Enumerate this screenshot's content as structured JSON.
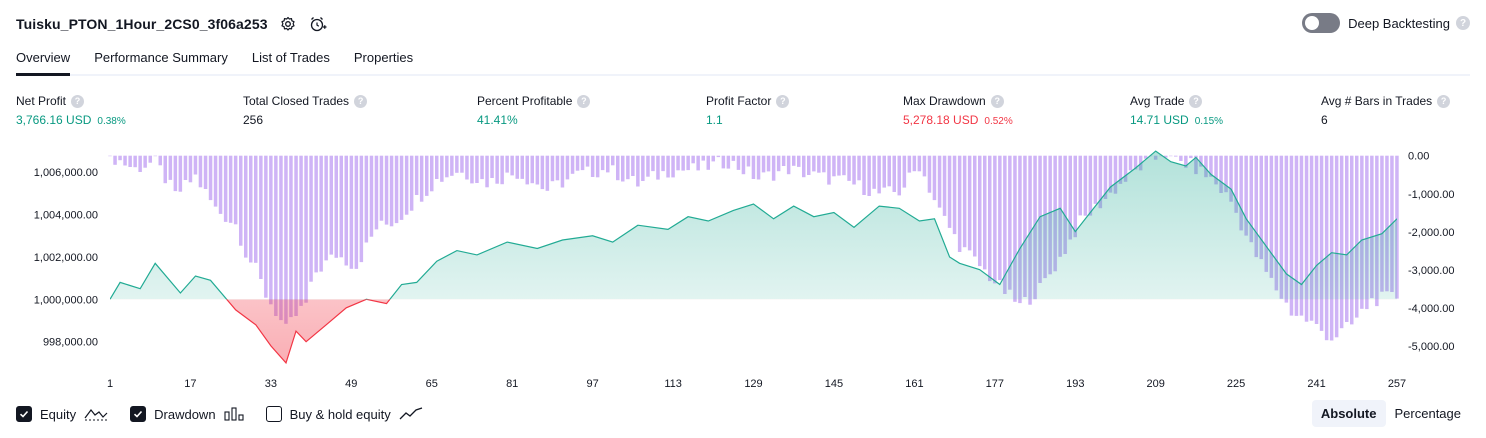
{
  "header": {
    "title": "Tuisku_PTON_1Hour_2CS0_3f06a253",
    "deep_backtesting_label": "Deep Backtesting",
    "help_glyph": "?"
  },
  "tabs": [
    {
      "label": "Overview",
      "active": true
    },
    {
      "label": "Performance Summary"
    },
    {
      "label": "List of Trades"
    },
    {
      "label": "Properties"
    }
  ],
  "stats": [
    {
      "label": "Net Profit",
      "value": "3,766.16 USD",
      "pct": "0.38%",
      "color": "#089981"
    },
    {
      "label": "Total Closed Trades",
      "value": "256",
      "pct": "",
      "color": "#131722"
    },
    {
      "label": "Percent Profitable",
      "value": "41.41%",
      "pct": "",
      "color": "#089981"
    },
    {
      "label": "Profit Factor",
      "value": "1.1",
      "pct": "",
      "color": "#089981"
    },
    {
      "label": "Max Drawdown",
      "value": "5,278.18 USD",
      "pct": "0.52%",
      "color": "#f23645"
    },
    {
      "label": "Avg Trade",
      "value": "14.71 USD",
      "pct": "0.15%",
      "color": "#089981"
    },
    {
      "label": "Avg # Bars in Trades",
      "value": "6",
      "pct": "",
      "color": "#131722"
    }
  ],
  "legend": {
    "equity_label": "Equity",
    "drawdown_label": "Drawdown",
    "buy_hold_label": "Buy & hold equity",
    "equity_checked": true,
    "drawdown_checked": true,
    "buy_hold_checked": false
  },
  "view_toggle": {
    "absolute_label": "Absolute",
    "percentage_label": "Percentage",
    "active": "Absolute"
  },
  "colors": {
    "equity_up": "#22ab94",
    "equity_down": "#f23645",
    "drawdown_bar": "#c7a7f5"
  },
  "chart_data": {
    "type": "area",
    "x_tick_labels": [
      "1",
      "17",
      "33",
      "49",
      "65",
      "81",
      "97",
      "113",
      "129",
      "145",
      "161",
      "177",
      "193",
      "209",
      "225",
      "241",
      "257"
    ],
    "left_axis": {
      "tick_labels": [
        "1,006,000.00",
        "1,004,000.00",
        "1,002,000.00",
        "1,000,000.00",
        "998,000.00"
      ],
      "ticks": [
        1006000,
        1004000,
        1002000,
        1000000,
        998000
      ],
      "range": [
        996900,
        1007050
      ]
    },
    "right_axis": {
      "tick_labels": [
        "0.00",
        "-1,000.00",
        "-2,000.00",
        "-3,000.00",
        "-4,000.00",
        "-5,000.00"
      ],
      "ticks": [
        0,
        -1000,
        -2000,
        -3000,
        -4000,
        -5000
      ],
      "range": [
        -5500,
        150
      ]
    },
    "baseline": 1000000,
    "x_range": [
      1,
      257
    ],
    "equity_series": {
      "name": "Equity",
      "x": [
        1,
        3,
        7,
        10,
        15,
        18,
        21,
        26,
        30,
        33,
        36,
        38,
        40,
        44,
        48,
        52,
        56,
        59,
        62,
        66,
        70,
        74,
        80,
        86,
        91,
        97,
        101,
        106,
        112,
        116,
        120,
        125,
        129,
        133,
        137,
        141,
        145,
        149,
        154,
        158,
        162,
        165,
        168,
        170,
        174,
        178,
        182,
        186,
        190,
        193,
        196,
        200,
        205,
        209,
        212,
        215,
        217,
        220,
        224,
        227,
        231,
        235,
        238,
        241,
        244,
        247,
        250,
        254,
        257
      ],
      "y": [
        1000000,
        1000800,
        1000500,
        1001700,
        1000300,
        1001100,
        1000900,
        999500,
        998800,
        997800,
        997000,
        998500,
        998000,
        998800,
        999600,
        1000000,
        999800,
        1000700,
        1000800,
        1001800,
        1002300,
        1002100,
        1002700,
        1002400,
        1002800,
        1003000,
        1002700,
        1003500,
        1003300,
        1003900,
        1003700,
        1004200,
        1004500,
        1003800,
        1004400,
        1003900,
        1004100,
        1003400,
        1004400,
        1004300,
        1003700,
        1003800,
        1002000,
        1001700,
        1001400,
        1000700,
        1002400,
        1003900,
        1004300,
        1003200,
        1004100,
        1005300,
        1006200,
        1007000,
        1006500,
        1006300,
        1006700,
        1005900,
        1005200,
        1003800,
        1002500,
        1001200,
        1000700,
        1001600,
        1002200,
        1002100,
        1002800,
        1003100,
        1003800
      ]
    },
    "drawdown_series": {
      "name": "Drawdown",
      "x": [
        1,
        6,
        10,
        14,
        18,
        22,
        26,
        28,
        30,
        32,
        34,
        36,
        38,
        40,
        42,
        46,
        50,
        54,
        58,
        62,
        66,
        70,
        76,
        82,
        88,
        94,
        100,
        106,
        112,
        118,
        124,
        130,
        136,
        142,
        148,
        154,
        158,
        162,
        166,
        170,
        174,
        178,
        182,
        186,
        190,
        194,
        198,
        202,
        206,
        210,
        212,
        216,
        220,
        224,
        228,
        232,
        236,
        240,
        244,
        248,
        252,
        257
      ],
      "y": [
        0,
        -350,
        -150,
        -1050,
        -550,
        -1400,
        -1800,
        -2550,
        -3000,
        -3650,
        -4100,
        -4600,
        -4200,
        -3900,
        -3050,
        -2600,
        -2900,
        -1900,
        -1700,
        -1150,
        -650,
        -400,
        -700,
        -450,
        -900,
        -500,
        -350,
        -750,
        -400,
        -350,
        -150,
        -600,
        -350,
        -550,
        -700,
        -1000,
        -950,
        -250,
        -1450,
        -2350,
        -2900,
        -3450,
        -3950,
        -3500,
        -2700,
        -1750,
        -1250,
        -750,
        -300,
        0,
        -100,
        -250,
        -600,
        -1200,
        -2400,
        -3300,
        -4100,
        -4400,
        -4800,
        -4450,
        -3800,
        -3700
      ]
    }
  }
}
